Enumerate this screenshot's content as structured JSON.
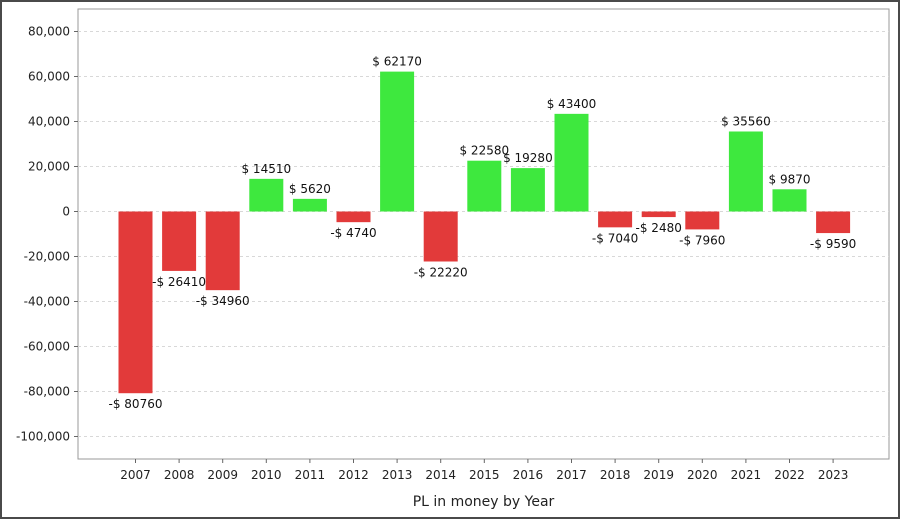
{
  "chart_data": {
    "type": "bar",
    "title": "",
    "xlabel": "PL in money by Year",
    "ylabel": "",
    "categories": [
      "2007",
      "2008",
      "2009",
      "2010",
      "2011",
      "2012",
      "2013",
      "2014",
      "2015",
      "2016",
      "2017",
      "2018",
      "2019",
      "2020",
      "2021",
      "2022",
      "2023"
    ],
    "values": [
      -80760,
      -26410,
      -34960,
      14510,
      5620,
      -4740,
      62170,
      -22220,
      22580,
      19280,
      43400,
      -7040,
      -2480,
      -7960,
      35560,
      9870,
      -9590
    ],
    "data_labels": [
      "-$ 80760",
      "-$ 26410",
      "-$ 34960",
      "$ 14510",
      "$ 5620",
      "-$ 4740",
      "$ 62170",
      "-$ 22220",
      "$ 22580",
      "$ 19280",
      "$ 43400",
      "-$ 7040",
      "-$ 2480",
      "-$ 7960",
      "$ 35560",
      "$ 9870",
      "-$ 9590"
    ],
    "ylim": [
      -110000,
      90000
    ],
    "yticks": [
      80000,
      60000,
      40000,
      20000,
      0,
      -20000,
      -40000,
      -60000,
      -80000,
      -100000
    ],
    "ytick_labels": [
      "80,000",
      "60,000",
      "40,000",
      "20,000",
      "0",
      "-20,000",
      "-40,000",
      "-60,000",
      "-80,000",
      "-100,000"
    ],
    "grid": true,
    "colors": {
      "positive": "#3ee83e",
      "negative": "#e23a3a",
      "grid": "#d8d8d8",
      "axis": "#9a9a9a"
    }
  }
}
